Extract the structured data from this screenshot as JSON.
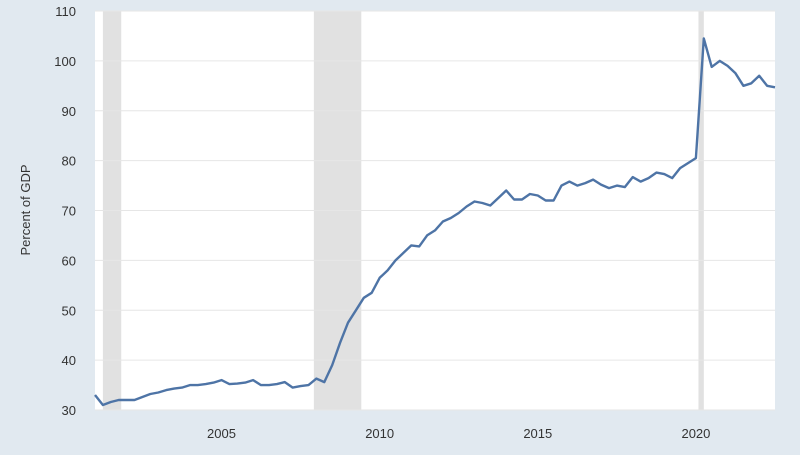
{
  "chart_data": {
    "type": "line",
    "title": "",
    "xlabel": "",
    "ylabel": "Percent of GDP",
    "ylim": [
      30,
      110
    ],
    "yticks": [
      30,
      40,
      50,
      60,
      70,
      80,
      90,
      100,
      110
    ],
    "xlim": [
      2001.0,
      2022.5
    ],
    "xticks": [
      2005,
      2010,
      2015,
      2020
    ],
    "grid": true,
    "recessions": [
      [
        2001.25,
        2001.83
      ],
      [
        2007.92,
        2009.42
      ],
      [
        2020.08,
        2020.25
      ]
    ],
    "colors": {
      "line": "#4e74a6",
      "recession": "#e1e1e1",
      "grid": "#e6e6e6",
      "background": "#e1e9f0",
      "plot": "#ffffff"
    },
    "series": [
      {
        "x": [
          2001.0,
          2001.25,
          2001.5,
          2001.75,
          2002.0,
          2002.25,
          2002.5,
          2002.75,
          2003.0,
          2003.25,
          2003.5,
          2003.75,
          2004.0,
          2004.25,
          2004.5,
          2004.75,
          2005.0,
          2005.25,
          2005.5,
          2005.75,
          2006.0,
          2006.25,
          2006.5,
          2006.75,
          2007.0,
          2007.25,
          2007.5,
          2007.75,
          2008.0,
          2008.25,
          2008.5,
          2008.75,
          2009.0,
          2009.25,
          2009.5,
          2009.75,
          2010.0,
          2010.25,
          2010.5,
          2010.75,
          2011.0,
          2011.25,
          2011.5,
          2011.75,
          2012.0,
          2012.25,
          2012.5,
          2012.75,
          2013.0,
          2013.25,
          2013.5,
          2013.75,
          2014.0,
          2014.25,
          2014.5,
          2014.75,
          2015.0,
          2015.25,
          2015.5,
          2015.75,
          2016.0,
          2016.25,
          2016.5,
          2016.75,
          2017.0,
          2017.25,
          2017.5,
          2017.75,
          2018.0,
          2018.25,
          2018.5,
          2018.75,
          2019.0,
          2019.25,
          2019.5,
          2019.75,
          2020.0,
          2020.25,
          2020.5,
          2020.75,
          2021.0,
          2021.25,
          2021.5,
          2021.75,
          2022.0,
          2022.25,
          2022.5
        ],
        "values": [
          33.0,
          31.0,
          31.6,
          32.0,
          32.0,
          32.0,
          32.6,
          33.2,
          33.5,
          34.0,
          34.3,
          34.5,
          35.0,
          35.0,
          35.2,
          35.5,
          36.0,
          35.2,
          35.3,
          35.5,
          36.0,
          35.0,
          35.0,
          35.2,
          35.6,
          34.5,
          34.8,
          35.0,
          36.3,
          35.6,
          39.0,
          43.5,
          47.5,
          50.0,
          52.5,
          53.5,
          56.5,
          58.0,
          60.0,
          61.5,
          63.0,
          62.8,
          65.0,
          66.0,
          67.8,
          68.5,
          69.5,
          70.8,
          71.8,
          71.5,
          71.0,
          72.5,
          74.0,
          72.2,
          72.2,
          73.3,
          73.0,
          72.0,
          72.0,
          75.0,
          75.8,
          75.0,
          75.5,
          76.2,
          75.2,
          74.5,
          75.0,
          74.7,
          76.7,
          75.8,
          76.5,
          77.6,
          77.3,
          76.5,
          78.5,
          79.5,
          80.5,
          104.5,
          98.8,
          100.0,
          99.0,
          97.5,
          95.0,
          95.5,
          97.0,
          95.0,
          94.7
        ]
      }
    ]
  }
}
